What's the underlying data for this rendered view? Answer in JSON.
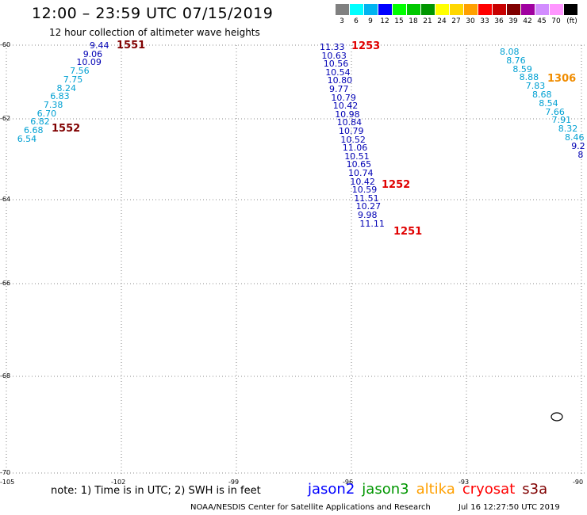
{
  "header": {
    "title": "12:00 – 23:59 UTC 07/15/2019",
    "subtitle": "12 hour collection of altimeter wave heights"
  },
  "legend": {
    "unit": "(ft)",
    "items": [
      {
        "label": "3",
        "color": "#808080"
      },
      {
        "label": "6",
        "color": "#00ffff"
      },
      {
        "label": "9",
        "color": "#00b4f0"
      },
      {
        "label": "12",
        "color": "#0000ff"
      },
      {
        "label": "15",
        "color": "#00ff00"
      },
      {
        "label": "18",
        "color": "#00c800"
      },
      {
        "label": "21",
        "color": "#009600"
      },
      {
        "label": "24",
        "color": "#ffff00"
      },
      {
        "label": "27",
        "color": "#ffd700"
      },
      {
        "label": "30",
        "color": "#ffa000"
      },
      {
        "label": "33",
        "color": "#ff0000"
      },
      {
        "label": "36",
        "color": "#c80000"
      },
      {
        "label": "39",
        "color": "#800000"
      },
      {
        "label": "42",
        "color": "#a000a0"
      },
      {
        "label": "45",
        "color": "#d28cff"
      },
      {
        "label": "70",
        "color": "#ff96ff"
      },
      {
        "label": "",
        "color": "#000000"
      }
    ]
  },
  "map": {
    "lat_labels": [
      "-60",
      "-62",
      "-64",
      "-66",
      "-68",
      "-70"
    ],
    "lon_labels": [
      "-105",
      "-102",
      "-99",
      "-96",
      "-93",
      "-90"
    ]
  },
  "colors": {
    "light_blue": "#00a0d2",
    "dark_blue": "#0000b4",
    "dark_red": "#800000",
    "red": "#e00000",
    "orange": "#f08c00"
  },
  "tracks": [
    {
      "id": "left",
      "values": [
        "9.44",
        "9.06",
        "10.09",
        "7.56",
        "7.75",
        "8.24",
        "6.83",
        "7.38",
        "6.70",
        "6.82",
        "6.68",
        "6.54"
      ],
      "colors": [
        "dark_blue",
        "dark_blue",
        "dark_blue",
        "light_blue",
        "light_blue",
        "light_blue",
        "light_blue",
        "light_blue",
        "light_blue",
        "light_blue",
        "light_blue",
        "light_blue"
      ]
    },
    {
      "id": "middle",
      "values": [
        "11.33",
        "10.63",
        "10.56",
        "10.54",
        "10.80",
        "9.77",
        "10.79",
        "10.42",
        "10.98",
        "10.84",
        "10.79",
        "10.52",
        "11.06",
        "10.51",
        "10.65",
        "10.74",
        "10.42",
        "10.59",
        "11.51",
        "10.27",
        "9.98",
        "11.11"
      ],
      "colors": [
        "dark_blue",
        "dark_blue",
        "dark_blue",
        "dark_blue",
        "dark_blue",
        "dark_blue",
        "dark_blue",
        "dark_blue",
        "dark_blue",
        "dark_blue",
        "dark_blue",
        "dark_blue",
        "dark_blue",
        "dark_blue",
        "dark_blue",
        "dark_blue",
        "dark_blue",
        "dark_blue",
        "dark_blue",
        "dark_blue",
        "dark_blue",
        "dark_blue"
      ]
    },
    {
      "id": "right",
      "values": [
        "8.08",
        "8.76",
        "8.59",
        "8.88",
        "7.83",
        "8.68",
        "8.54",
        "7.66",
        "7.91",
        "8.32",
        "8.46",
        "9.2",
        "8"
      ],
      "colors": [
        "light_blue",
        "light_blue",
        "light_blue",
        "light_blue",
        "light_blue",
        "light_blue",
        "light_blue",
        "light_blue",
        "light_blue",
        "light_blue",
        "light_blue",
        "dark_blue",
        "dark_blue"
      ]
    }
  ],
  "pass_labels": [
    {
      "text": "1551",
      "color": "dark_red"
    },
    {
      "text": "1552",
      "color": "dark_red"
    },
    {
      "text": "1253",
      "color": "red"
    },
    {
      "text": "1252",
      "color": "red"
    },
    {
      "text": "1251",
      "color": "red"
    },
    {
      "text": "1306",
      "color": "orange"
    }
  ],
  "footer": {
    "note": "note: 1) Time is in UTC; 2) SWH is in feet",
    "satellites": [
      {
        "name": "jason2",
        "color": "#0000ff"
      },
      {
        "name": "jason3",
        "color": "#009600"
      },
      {
        "name": "altika",
        "color": "#ffa000"
      },
      {
        "name": "cryosat",
        "color": "#ff0000"
      },
      {
        "name": "s3a",
        "color": "#800000"
      }
    ],
    "credit": "NOAA/NESDIS Center for Satellite Applications and Research",
    "timestamp": "Jul 16 12:27:50 UTC 2019"
  }
}
